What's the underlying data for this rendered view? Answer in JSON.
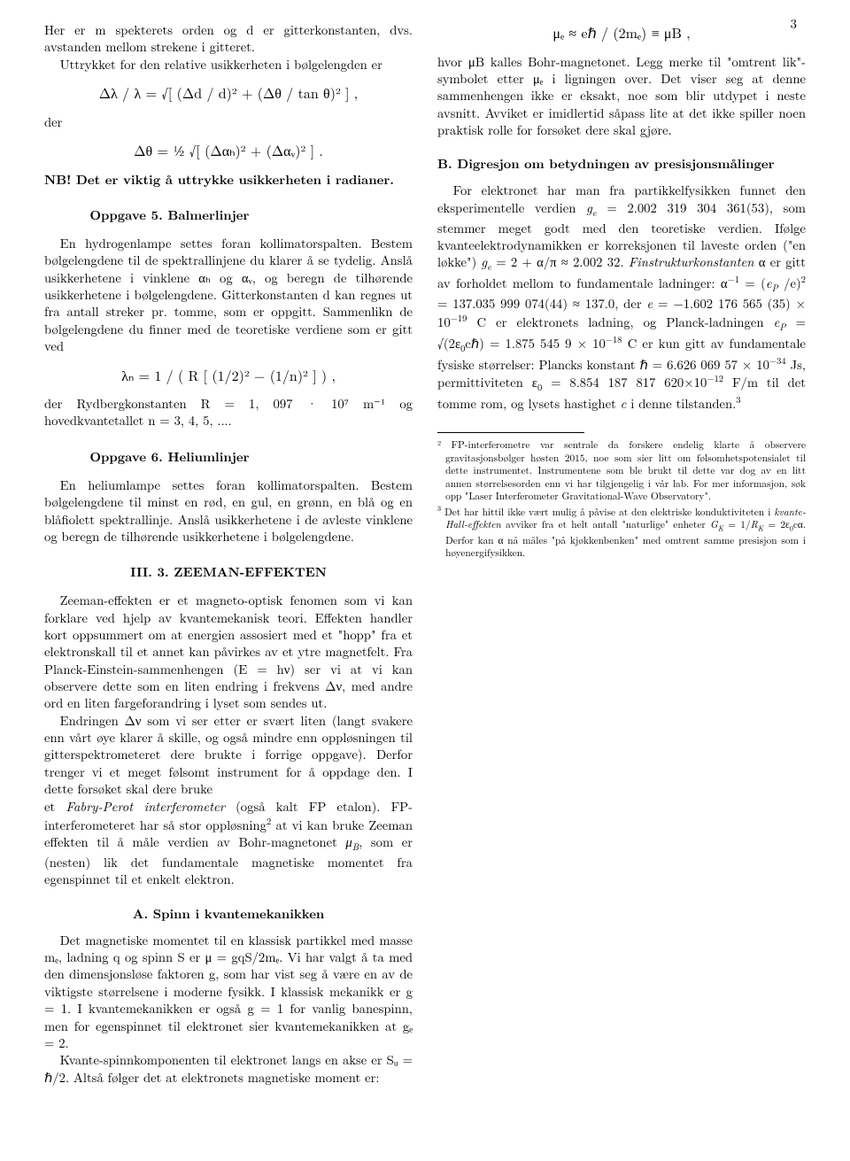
{
  "page_number": "3",
  "col1": {
    "intro_p1": "Her er m spekterets orden og d er gitterkonstanten, dvs. avstanden mellom strekene i gitteret.",
    "intro_p2": "Uttrykket for den relative usikkerheten i bølgelengden er",
    "eq1": "Δλ / λ = √[ (Δd / d)² + (Δθ / tan θ)² ] ,",
    "der_label": "der",
    "eq2": "Δθ = ½ √[ (Δαₕ)² + (Δαᵥ)² ] .",
    "nb": "NB! Det er viktig å uttrykke usikkerheten i radianer.",
    "opp5_title": "Oppgave 5. Balmerlinjer",
    "opp5_p": "En hydrogenlampe settes foran kollimatorspalten. Bestem bølgelengdene til de spektrallinjene du klarer å se tydelig. Anslå usikkerhetene i vinklene αₕ og αᵥ, og beregn de tilhørende usikkerhetene i bølgelengdene. Gitterkonstanten d kan regnes ut fra antall streker pr. tomme, som er oppgitt. Sammenlikn de bølgelengdene du finner med de teoretiske verdiene som er gitt ved",
    "eq3": "λₙ = 1 / ( R [ (1/2)² − (1/n)² ] ) ,",
    "opp5_tail": "der Rydbergkonstanten R = 1, 097 · 10⁷ m⁻¹ og hovedkvantetallet n = 3, 4, 5, ....",
    "opp6_title": "Oppgave 6. Heliumlinjer",
    "opp6_p": "En heliumlampe settes foran kollimatorspalten. Bestem bølgelengdene til minst en rød, en gul, en grønn, en blå og en blåfiolett spektrallinje. Anslå usikkerhetene i de avleste vinklene og beregn de tilhørende usikkerhetene i bølgelengdene.",
    "sec3_title": "III.   3. ZEEMAN-EFFEKTEN",
    "sec3_p1": "Zeeman-effekten er et magneto-optisk fenomen som vi kan forklare ved hjelp av kvantemekanisk teori. Effekten handler kort oppsummert om at energien assosiert med et \"hopp\" fra et elektronskall til et annet kan påvirkes av et ytre magnetfelt. Fra Planck-Einstein-sammenhengen (E = hν) ser vi at vi kan observere dette som en liten endring i frekvens Δν, med andre ord en liten fargeforandring i lyset som sendes ut.",
    "sec3_p2": "Endringen Δν som vi ser etter er svært liten (langt svakere enn vårt øye klarer å skille, og også mindre enn oppløsningen til gitterspektrometeret dere brukte i forrige oppgave). Derfor trenger vi et meget følsomt instrument for å oppdage den. I dette forsøket skal dere bruke"
  },
  "col2": {
    "top_p": "et Fabry-Perot interferometer (også kalt FP etalon). FP-interferometeret har så stor oppløsning² at vi kan bruke Zeeman effekten til å måle verdien av Bohr-magnetonet μB, som er (nesten) lik det fundamentale magnetiske momentet fra egenspinnet til et enkelt elektron.",
    "secA_title": "A.   Spinn i kvantemekanikken",
    "secA_p1": "Det magnetiske momentet til en klassisk partikkel med masse mₑ, ladning q og spinn S er μ = gqS/2mₑ. Vi har valgt å ta med den dimensjonsløse faktoren g, som har vist seg å være en av de viktigste størrelsene i moderne fysikk. I klassisk mekanikk er g = 1. I kvantemekanikken er også g = 1 for vanlig banespinn, men for egenspinnet til elektronet sier kvantemekanikken at gₑ = 2.",
    "secA_p2": "Kvante-spinnkomponenten til elektronet langs en akse er Sᵤ = ℏ/2. Altså følger det at elektronets magnetiske moment er:",
    "eqA": "μₑ ≈ eℏ / (2mₑ) ≡ μB ,",
    "secA_p3": "hvor μB kalles Bohr-magnetonet. Legg merke til \"omtrent lik\"-symbolet etter μₑ i ligningen over. Det viser seg at denne sammenhengen ikke er eksakt, noe som blir utdypet i neste avsnitt. Avviket er imidlertid såpass lite at det ikke spiller noen praktisk rolle for forsøket dere skal gjøre.",
    "secB_title": "B.   Digresjon om betydningen av presisjonsmålinger",
    "secB_p1": "For elektronet har man fra partikkelfysikken funnet den eksperimentelle verdien gₑ = 2.002 319 304 361(53), som stemmer meget godt med den teoretiske verdien. Ifølge kvanteelektrodynamikken er korreksjonen til laveste orden (\"en løkke\") gₑ = 2 + α/π ≈ 2.002 32. Finstrukturkonstanten α er gitt av forholdet mellom to fundamentale ladninger: α⁻¹ = (eP /e)² = 137.035 999 074(44) ≈ 137.0, der e = −1.602 176 565 (35) × 10⁻¹⁹ C er elektronets ladning, og Planck-ladningen eP = √(2ε₀cℏ) = 1.875 545 9 × 10⁻¹⁸ C er kun gitt av fundamentale fysiske størrelser: Plancks konstant ℏ = 6.626 069 57 × 10⁻³⁴ Js, permittiviteten ε₀ = 8.854 187 817 620×10⁻¹² F/m til det tomme rom, og lysets hastighet c i denne tilstanden.³",
    "fn2": "² FP-interferometre var sentrale da forskere endelig klarte å observere gravitasjonsbølger høsten 2015, noe som sier litt om følsomhetspotensialet til dette instrumentet. Instrumentene som ble brukt til dette var dog av en litt annen størrelsesorden enn vi har tilgjengelig i vår lab. For mer informasjon, søk opp \"Laser Interferometer Gravitational-Wave Observatory\".",
    "fn3": "³ Det har hittil ikke vært mulig å påvise at den elektriske konduktiviteten i kvante-Hall-effekten avviker fra et helt antall \"naturlige\" enheter GK = 1/RK = 2ε₀cα. Derfor kan α nå måles \"på kjøkkenbenken\" med omtrent samme presisjon som i høyenergifysikken."
  }
}
